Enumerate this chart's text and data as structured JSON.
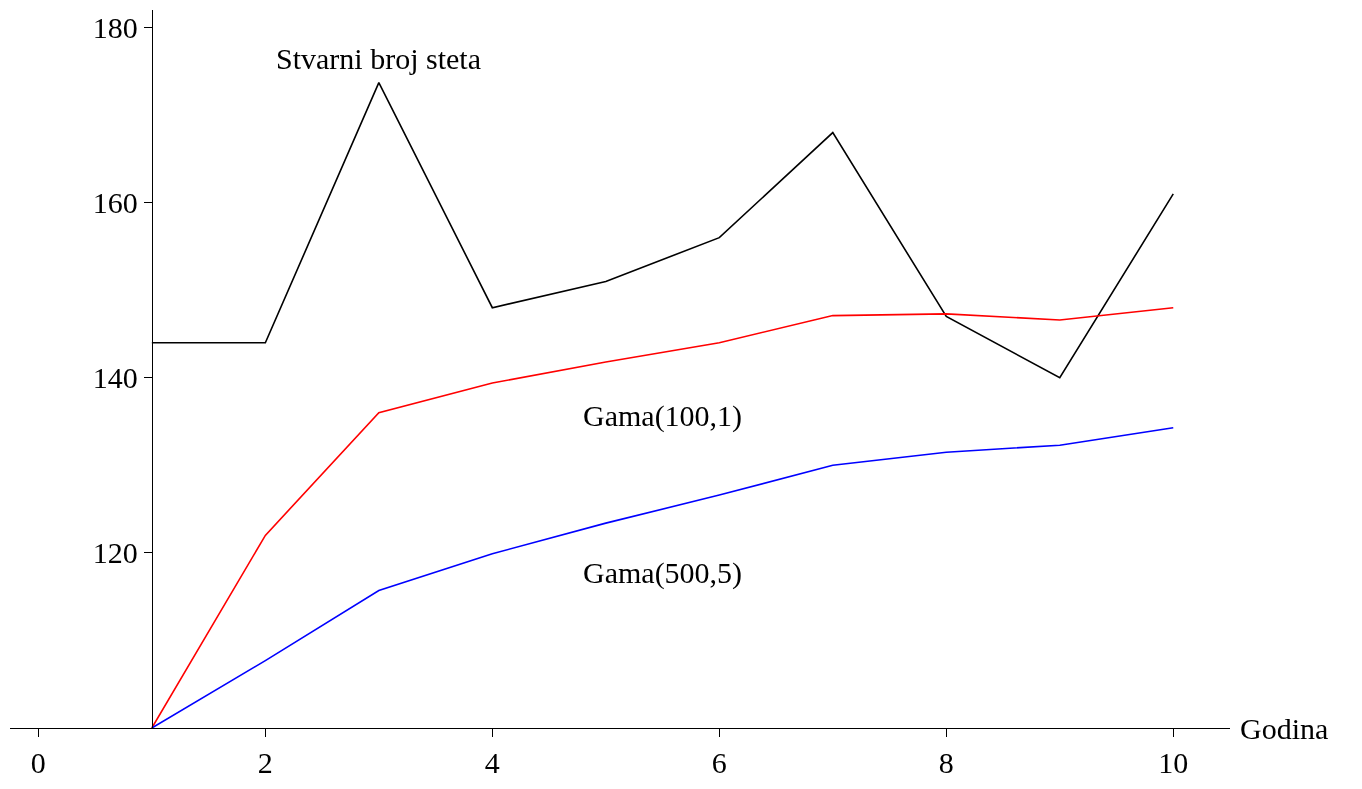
{
  "chart_data": {
    "type": "line",
    "xlabel": "Godina",
    "x": [
      1,
      2,
      3,
      4,
      5,
      6,
      7,
      8,
      9,
      10
    ],
    "series": [
      {
        "name": "Stvarni broj steta",
        "color": "#000000",
        "values": [
          144,
          144,
          173.7,
          148,
          151,
          156,
          168,
          147,
          140,
          161
        ]
      },
      {
        "name": "Gama(100,1)",
        "color": "#ff0000",
        "values": [
          100,
          122,
          136,
          139.4,
          141.8,
          144,
          147.1,
          147.3,
          146.6,
          148
        ]
      },
      {
        "name": "Gama(500,5)",
        "color": "#0000ff",
        "values": [
          100,
          107.7,
          115.7,
          119.9,
          123.4,
          126.6,
          130,
          131.5,
          132.3,
          134.3
        ]
      }
    ],
    "xlim": [
      -0.25,
      10.5
    ],
    "ylim": [
      100,
      182
    ],
    "xticks": [
      0,
      2,
      4,
      6,
      8,
      10
    ],
    "yticks": [
      120,
      140,
      160,
      180
    ],
    "marker": "none",
    "line_style": "solid"
  }
}
